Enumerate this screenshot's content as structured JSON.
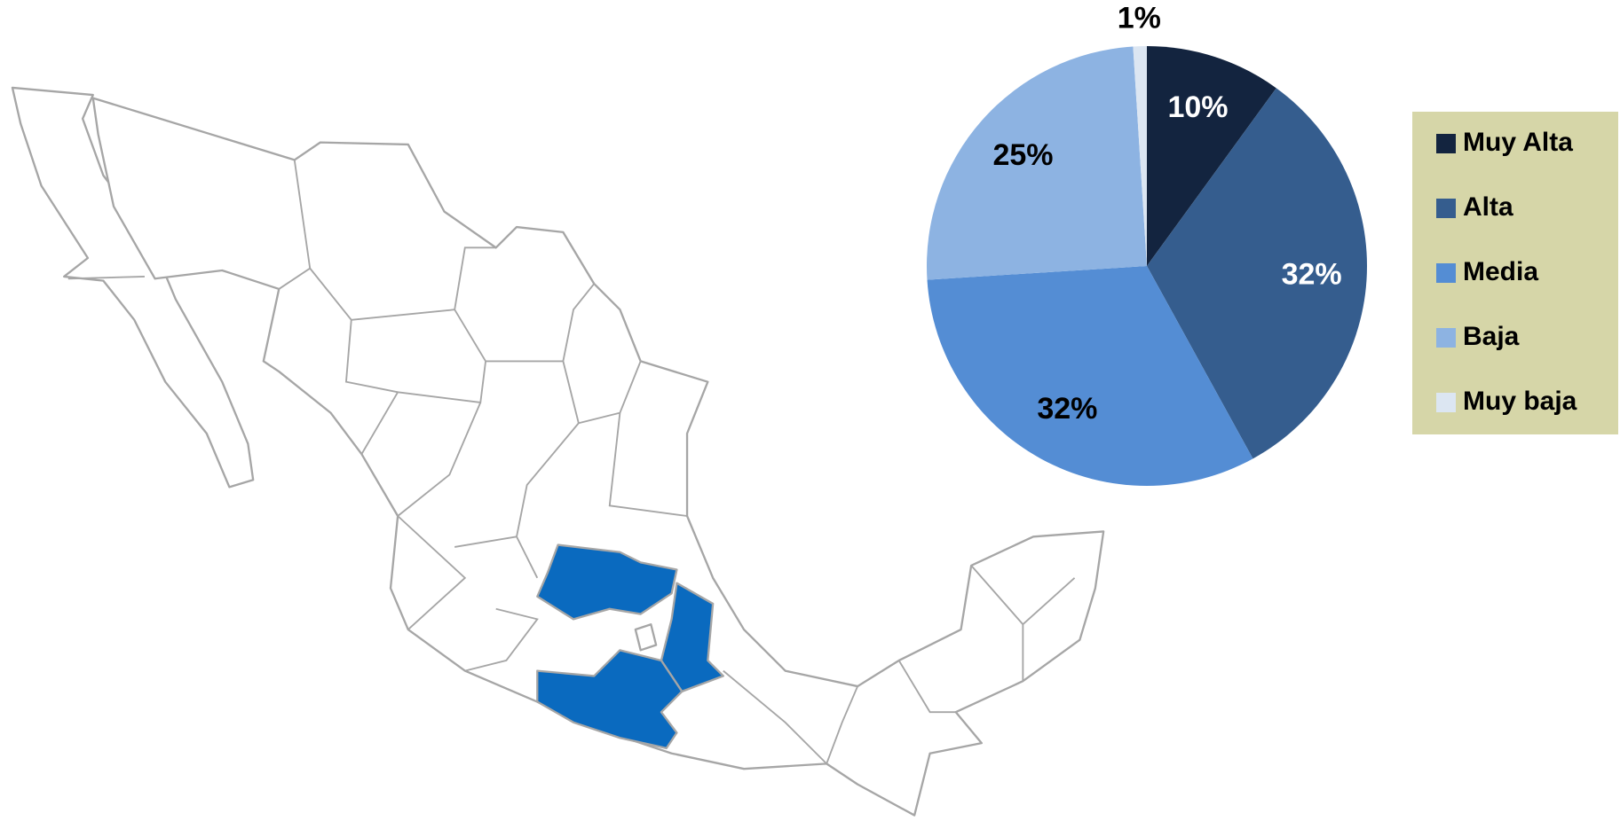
{
  "chart_data": {
    "type": "pie",
    "categories": [
      "Muy Alta",
      "Alta",
      "Media",
      "Baja",
      "Muy baja"
    ],
    "values": [
      10,
      32,
      32,
      25,
      1
    ],
    "value_labels": [
      "10%",
      "32%",
      "32%",
      "25%",
      "1%"
    ],
    "colors": [
      "#13243f",
      "#355d8e",
      "#548dd4",
      "#8db3e2",
      "#dce6f2"
    ],
    "label_colors": [
      "#ffffff",
      "#ffffff",
      "#000000",
      "#000000",
      "#000000"
    ],
    "legend": "right"
  }
}
